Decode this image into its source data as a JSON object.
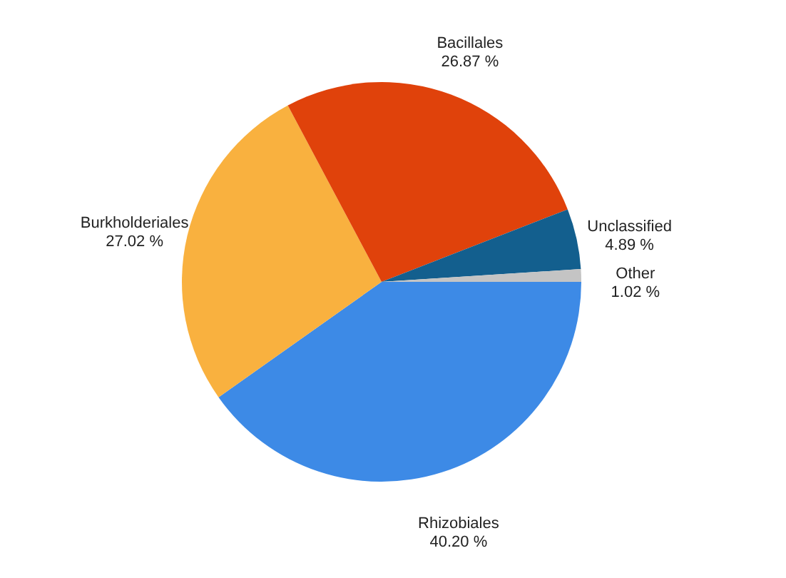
{
  "chart_data": {
    "type": "pie",
    "categories": [
      "Rhizobiales",
      "Burkholderiales",
      "Bacillales",
      "Unclassified",
      "Other"
    ],
    "values": [
      40.2,
      27.02,
      26.87,
      4.89,
      1.02
    ],
    "value_labels": [
      "40.20 %",
      "27.02 %",
      "26.87 %",
      "4.89 %",
      "1.02 %"
    ],
    "colors": [
      "#3d8ae6",
      "#f9b13f",
      "#e0420b",
      "#135f8e",
      "#c4c4c4"
    ],
    "legend": false
  }
}
